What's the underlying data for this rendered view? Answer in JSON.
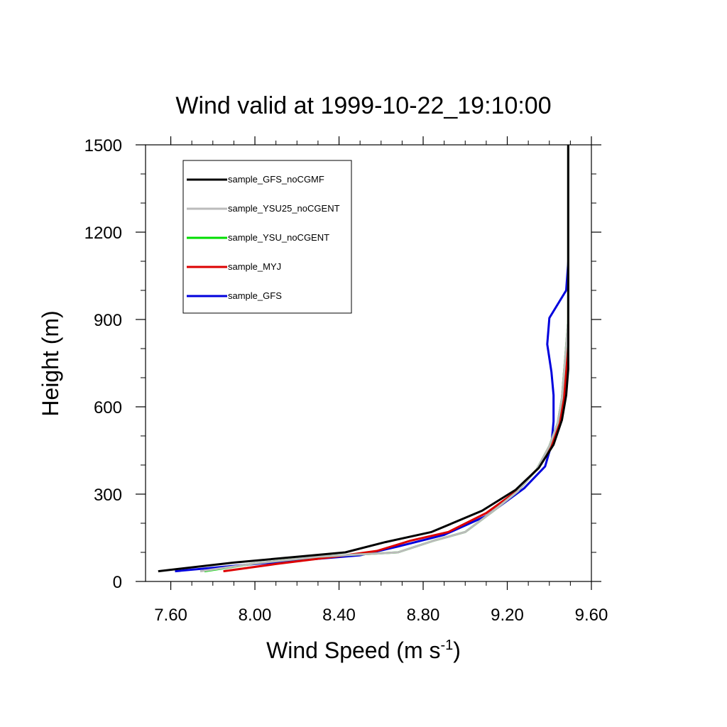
{
  "chart_data": {
    "type": "line",
    "title": "Wind valid at 1999-10-22_19:10:00",
    "xlabel": "Wind Speed (m s",
    "xlabel_sup": "-1",
    "xlabel_end": ")",
    "ylabel": "Height (m)",
    "xlim": [
      7.48,
      9.6
    ],
    "ylim": [
      0,
      1500
    ],
    "xticks": [
      7.6,
      8.0,
      8.4,
      8.8,
      9.2,
      9.6
    ],
    "xtick_labels": [
      "7.60",
      "8.00",
      "8.40",
      "8.80",
      "9.20",
      "9.60"
    ],
    "yticks": [
      0,
      300,
      600,
      900,
      1200,
      1500
    ],
    "ytick_labels": [
      "0",
      "300",
      "600",
      "900",
      "1200",
      "1500"
    ],
    "grid": false,
    "legend_position": "top-left",
    "series": [
      {
        "name": "sample_GFS_noCGMF",
        "color": "#000000",
        "points": [
          [
            7.54,
            35
          ],
          [
            7.9,
            65
          ],
          [
            8.43,
            100
          ],
          [
            8.62,
            135
          ],
          [
            8.84,
            170
          ],
          [
            9.08,
            243
          ],
          [
            9.24,
            315
          ],
          [
            9.35,
            390
          ],
          [
            9.42,
            470
          ],
          [
            9.46,
            555
          ],
          [
            9.48,
            640
          ],
          [
            9.49,
            730
          ],
          [
            9.49,
            820
          ],
          [
            9.49,
            900
          ],
          [
            9.49,
            1000
          ],
          [
            9.49,
            1100
          ],
          [
            9.49,
            1200
          ],
          [
            9.49,
            1300
          ],
          [
            9.49,
            1400
          ],
          [
            9.49,
            1500
          ]
        ]
      },
      {
        "name": "sample_YSU25_noCGENT",
        "color": "#bbbbbb",
        "points": [
          [
            7.74,
            35
          ],
          [
            8.0,
            62
          ],
          [
            8.3,
            85
          ],
          [
            8.68,
            100
          ],
          [
            8.85,
            140
          ],
          [
            9.0,
            170
          ],
          [
            9.13,
            240
          ],
          [
            9.25,
            310
          ],
          [
            9.34,
            385
          ],
          [
            9.4,
            465
          ],
          [
            9.44,
            545
          ],
          [
            9.46,
            630
          ],
          [
            9.47,
            720
          ],
          [
            9.48,
            810
          ],
          [
            9.49,
            900
          ],
          [
            9.49,
            1000
          ],
          [
            9.49,
            1100
          ],
          [
            9.49,
            1200
          ],
          [
            9.49,
            1300
          ],
          [
            9.49,
            1400
          ],
          [
            9.49,
            1500
          ]
        ]
      },
      {
        "name": "sample_YSU_noCGENT",
        "color": "#00dd00",
        "points": [
          [
            7.76,
            35
          ],
          [
            8.0,
            62
          ],
          [
            8.3,
            85
          ],
          [
            8.68,
            100
          ],
          [
            8.85,
            140
          ],
          [
            9.0,
            170
          ],
          [
            9.13,
            240
          ],
          [
            9.25,
            310
          ],
          [
            9.34,
            385
          ],
          [
            9.4,
            465
          ],
          [
            9.44,
            545
          ],
          [
            9.46,
            630
          ],
          [
            9.47,
            720
          ],
          [
            9.48,
            810
          ],
          [
            9.49,
            900
          ],
          [
            9.49,
            1000
          ],
          [
            9.49,
            1100
          ],
          [
            9.49,
            1200
          ],
          [
            9.49,
            1300
          ],
          [
            9.49,
            1400
          ],
          [
            9.49,
            1500
          ]
        ]
      },
      {
        "name": "sample_MYJ",
        "color": "#dd0000",
        "points": [
          [
            7.85,
            35
          ],
          [
            8.1,
            60
          ],
          [
            8.38,
            85
          ],
          [
            8.58,
            105
          ],
          [
            8.74,
            140
          ],
          [
            8.92,
            170
          ],
          [
            9.1,
            235
          ],
          [
            9.24,
            308
          ],
          [
            9.34,
            385
          ],
          [
            9.41,
            465
          ],
          [
            9.45,
            550
          ],
          [
            9.47,
            635
          ],
          [
            9.48,
            725
          ],
          [
            9.49,
            815
          ],
          [
            9.49,
            900
          ],
          [
            9.49,
            1000
          ],
          [
            9.49,
            1100
          ],
          [
            9.49,
            1200
          ],
          [
            9.49,
            1300
          ],
          [
            9.49,
            1400
          ],
          [
            9.49,
            1500
          ]
        ]
      },
      {
        "name": "sample_GFS",
        "color": "#0000dd",
        "points": [
          [
            7.62,
            35
          ],
          [
            8.0,
            60
          ],
          [
            8.5,
            90
          ],
          [
            8.68,
            120
          ],
          [
            8.9,
            160
          ],
          [
            9.1,
            225
          ],
          [
            9.28,
            320
          ],
          [
            9.38,
            395
          ],
          [
            9.41,
            470
          ],
          [
            9.42,
            550
          ],
          [
            9.42,
            640
          ],
          [
            9.41,
            720
          ],
          [
            9.39,
            815
          ],
          [
            9.4,
            905
          ],
          [
            9.48,
            1000
          ],
          [
            9.49,
            1100
          ],
          [
            9.49,
            1200
          ],
          [
            9.49,
            1300
          ],
          [
            9.49,
            1400
          ],
          [
            9.49,
            1500
          ]
        ]
      }
    ]
  }
}
